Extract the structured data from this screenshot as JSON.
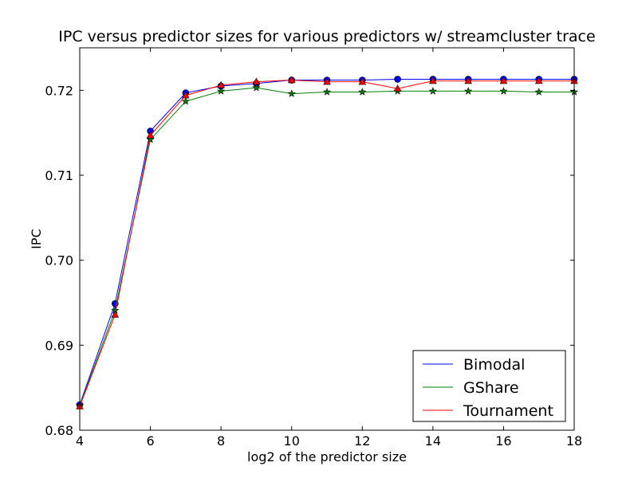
{
  "chart_data": {
    "type": "line",
    "title": "IPC versus predictor sizes for various predictors w/ streamcluster trace",
    "xlabel": "log2 of the predictor size",
    "ylabel": "IPC",
    "xlim": [
      4,
      18
    ],
    "ylim": [
      0.68,
      0.725
    ],
    "xticks": [
      4,
      6,
      8,
      10,
      12,
      14,
      16,
      18
    ],
    "yticks": [
      0.68,
      0.69,
      0.7,
      0.71,
      0.72
    ],
    "ytick_labels": [
      "0.68",
      "0.69",
      "0.70",
      "0.71",
      "0.72"
    ],
    "grid": false,
    "legend_position": "lower-right",
    "x": [
      4,
      5,
      6,
      7,
      8,
      9,
      10,
      11,
      12,
      13,
      14,
      15,
      16,
      17,
      18
    ],
    "series": [
      {
        "name": "Bimodal",
        "color": "#0000ff",
        "marker": "circle",
        "values": [
          0.683,
          0.6949,
          0.7152,
          0.7197,
          0.7205,
          0.7208,
          0.7212,
          0.7212,
          0.7212,
          0.7213,
          0.7213,
          0.7213,
          0.7213,
          0.7213,
          0.7213
        ]
      },
      {
        "name": "GShare",
        "color": "#008000",
        "marker": "star",
        "values": [
          0.6829,
          0.6941,
          0.7142,
          0.7187,
          0.7199,
          0.7203,
          0.7196,
          0.7198,
          0.7198,
          0.7199,
          0.7199,
          0.7199,
          0.7199,
          0.7198,
          0.7198
        ]
      },
      {
        "name": "Tournament",
        "color": "#ff0000",
        "marker": "triangle",
        "values": [
          0.6828,
          0.6936,
          0.7147,
          0.7194,
          0.7206,
          0.721,
          0.7212,
          0.721,
          0.721,
          0.7202,
          0.7211,
          0.7211,
          0.7211,
          0.7211,
          0.7211
        ]
      }
    ]
  }
}
